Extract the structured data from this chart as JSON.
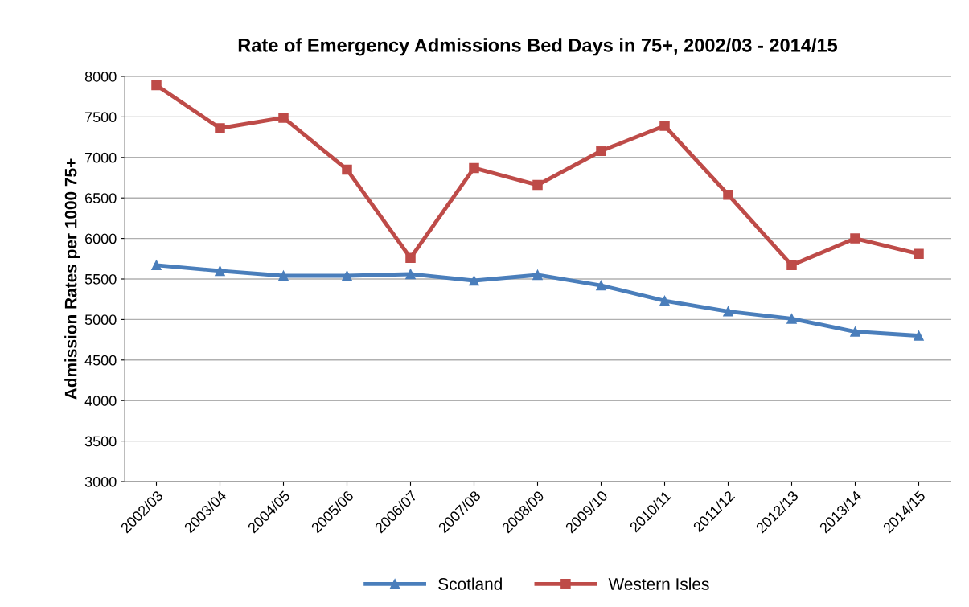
{
  "chart_data": {
    "type": "line",
    "title": "Rate of Emergency Admissions Bed Days in 75+, 2002/03 - 2014/15",
    "ylabel": "Admission Rates per 1000 75+",
    "categories": [
      "2002/03",
      "2003/04",
      "2004/05",
      "2005/06",
      "2006/07",
      "2007/08",
      "2008/09",
      "2009/10",
      "2010/11",
      "2011/12",
      "2012/13",
      "2013/14",
      "2014/15"
    ],
    "series": [
      {
        "name": "Scotland",
        "color": "#4a7ebb",
        "marker": "triangle",
        "values": [
          5670,
          5600,
          5540,
          5540,
          5560,
          5480,
          5550,
          5420,
          5230,
          5100,
          5010,
          4850,
          4800
        ]
      },
      {
        "name": "Western Isles",
        "color": "#be4b48",
        "marker": "square",
        "values": [
          7890,
          7360,
          7490,
          6850,
          5760,
          6870,
          6660,
          7080,
          7390,
          6540,
          5670,
          6000,
          5810
        ]
      }
    ],
    "ylim": [
      3000,
      8000
    ],
    "yticks": [
      3000,
      3500,
      4000,
      4500,
      5000,
      5500,
      6000,
      6500,
      7000,
      7500,
      8000
    ],
    "grid": "y",
    "legend": "bottom",
    "line_style": "solid"
  }
}
